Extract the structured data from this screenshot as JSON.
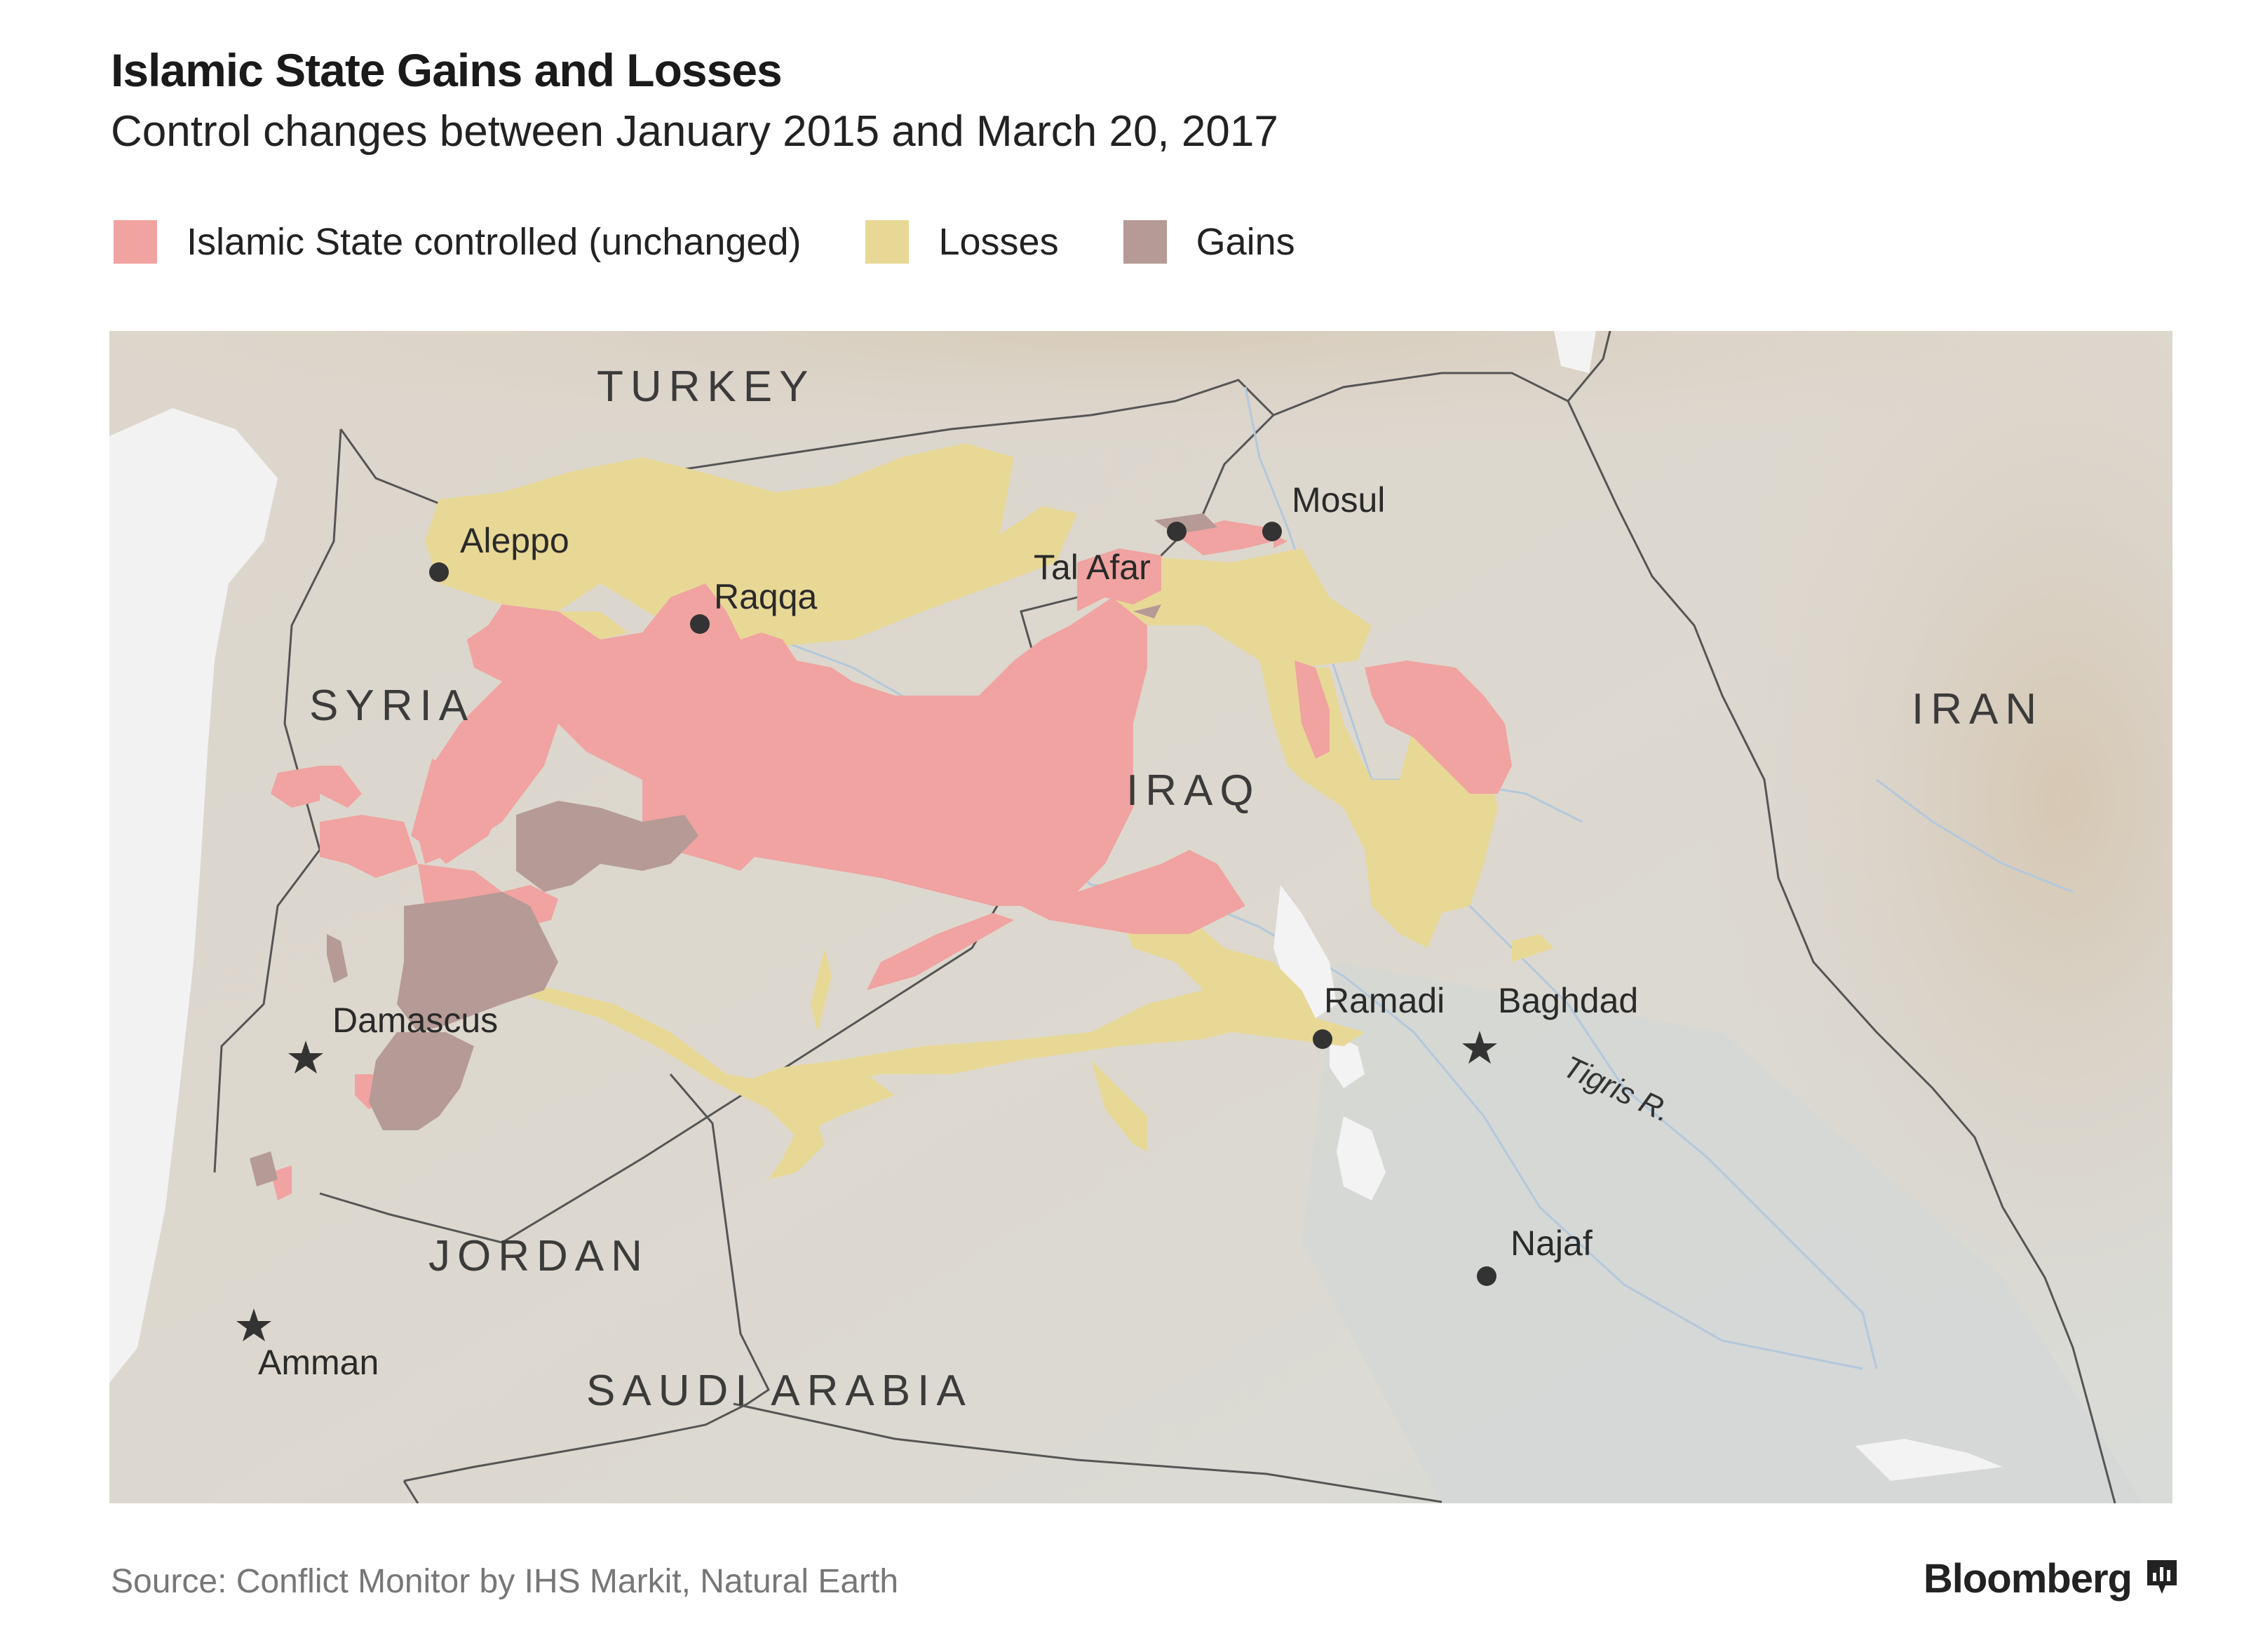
{
  "header": {
    "title": "Islamic State Gains and Losses",
    "subtitle": "Control changes between January 2015 and March 20, 2017"
  },
  "legend": [
    {
      "label": "Islamic State controlled (unchanged)",
      "color": "#f0a3a0"
    },
    {
      "label": "Losses",
      "color": "#e8d896"
    },
    {
      "label": "Gains",
      "color": "#b59a96"
    }
  ],
  "map": {
    "countries": {
      "turkey": "TURKEY",
      "syria": "SYRIA",
      "iraq": "IRAQ",
      "iran": "IRAN",
      "jordan": "JORDAN",
      "saudi_arabia": "SAUDI ARABIA"
    },
    "cities": {
      "aleppo": "Aleppo",
      "raqqa": "Raqqa",
      "tal_afar": "Tal Afar",
      "mosul": "Mosul",
      "damascus": "Damascus",
      "ramadi": "Ramadi",
      "baghdad": "Baghdad",
      "najaf": "Najaf",
      "amman": "Amman"
    },
    "rivers": {
      "tigris": "Tigris R."
    },
    "capital_marker": "star",
    "city_marker": "dot"
  },
  "footer": {
    "source": "Source: Conflict Monitor by IHS Markit, Natural Earth",
    "brand": "Bloomberg"
  }
}
